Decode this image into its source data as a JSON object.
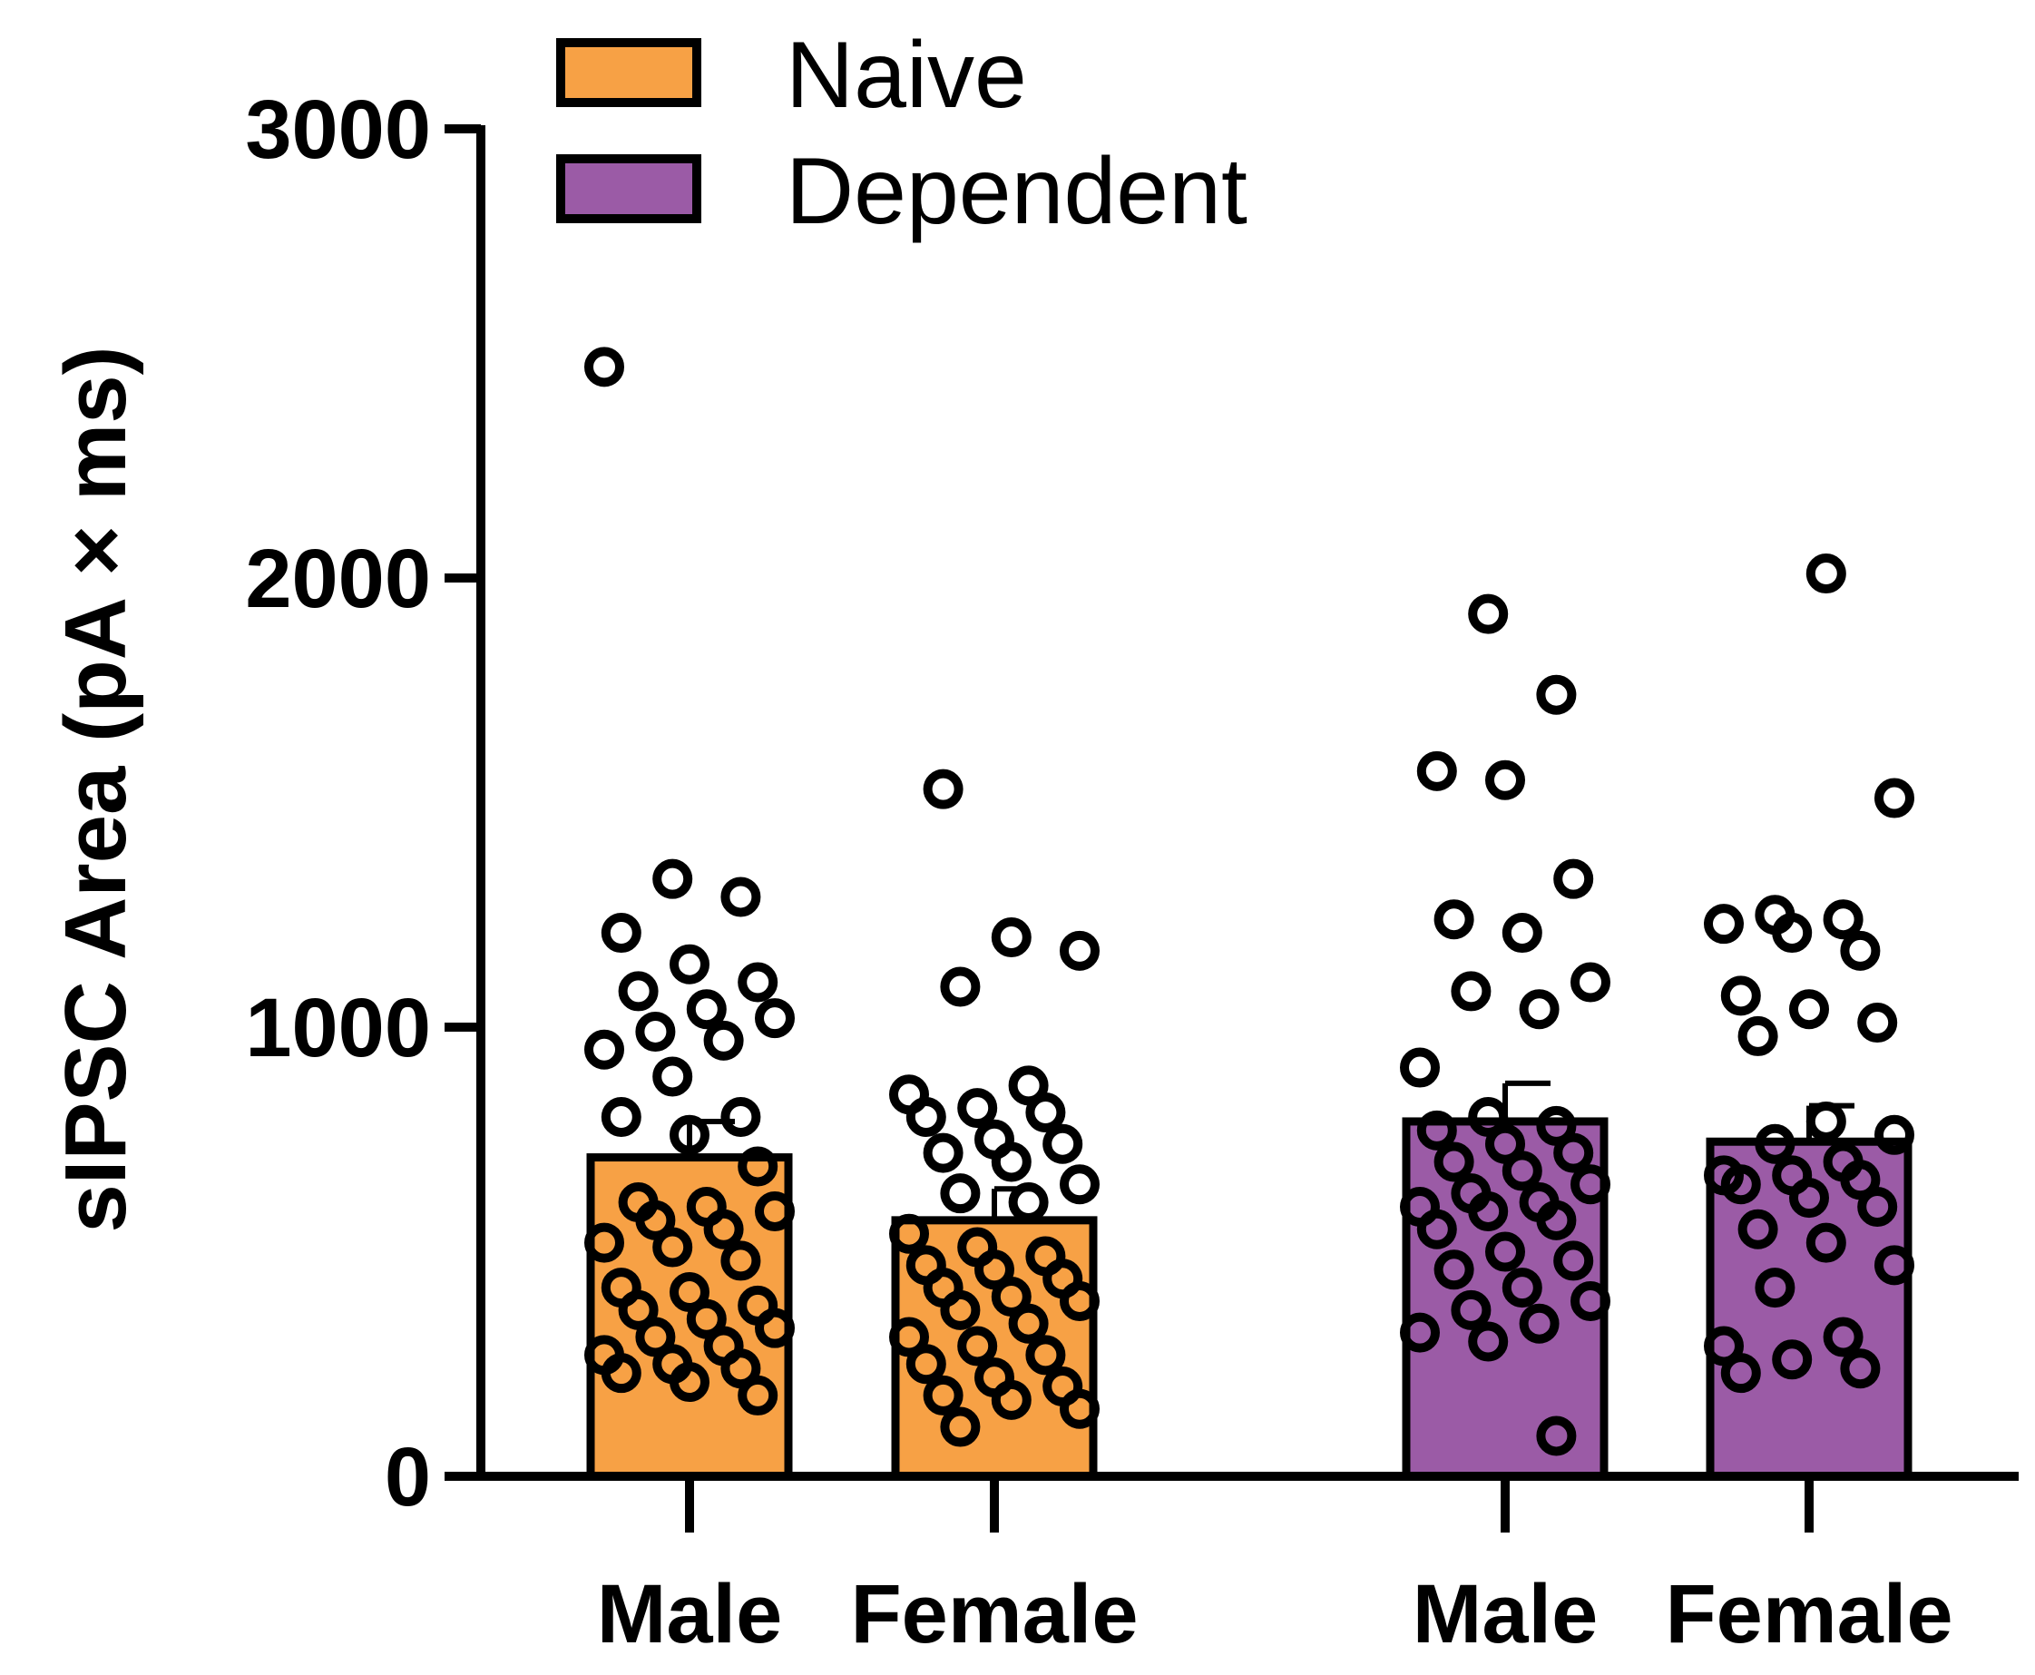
{
  "chart_data": {
    "type": "bar",
    "title": "",
    "xlabel": "",
    "ylabel": "sIPSC Area (pA × ms)",
    "ylim": [
      0,
      3000
    ],
    "yticks": [
      "0",
      "1000",
      "2000",
      "3000"
    ],
    "legend": {
      "placement": "top-left",
      "entries": [
        {
          "name": "Naive",
          "color": "#F7A145"
        },
        {
          "name": "Dependent",
          "color": "#9B5BA6"
        }
      ]
    },
    "categories": [
      "Male",
      "Female",
      "Male",
      "Female"
    ],
    "series": [
      {
        "name": "Naive",
        "color": "#F7A145",
        "groups": [
          {
            "category": "Male",
            "mean": 710,
            "sem": 80,
            "points": [
              2470,
              1330,
              1290,
              1210,
              1140,
              1100,
              1080,
              1040,
              1020,
              990,
              970,
              950,
              890,
              800,
              800,
              760,
              690,
              610,
              600,
              590,
              570,
              550,
              520,
              510,
              480,
              420,
              410,
              380,
              370,
              350,
              330,
              310,
              290,
              270,
              250,
              240,
              230,
              210,
              180
            ]
          },
          {
            "category": "Female",
            "mean": 570,
            "sem": 70,
            "points": [
              1530,
              1200,
              1170,
              1090,
              870,
              850,
              820,
              810,
              800,
              750,
              740,
              720,
              700,
              650,
              630,
              610,
              540,
              510,
              490,
              470,
              460,
              440,
              420,
              400,
              390,
              370,
              340,
              310,
              290,
              270,
              250,
              220,
              200,
              180,
              170,
              150,
              110
            ]
          }
        ]
      },
      {
        "name": "Dependent",
        "color": "#9B5BA6",
        "groups": [
          {
            "category": "Male",
            "mean": 790,
            "sem": 85,
            "points": [
              1920,
              1740,
              1570,
              1550,
              1330,
              1240,
              1210,
              1100,
              1080,
              1040,
              910,
              800,
              780,
              770,
              740,
              720,
              700,
              680,
              650,
              630,
              610,
              600,
              590,
              570,
              550,
              500,
              480,
              460,
              420,
              390,
              370,
              340,
              320,
              300,
              90
            ]
          },
          {
            "category": "Female",
            "mean": 745,
            "sem": 80,
            "points": [
              2010,
              1510,
              1250,
              1240,
              1230,
              1210,
              1170,
              1070,
              1040,
              1010,
              980,
              790,
              760,
              740,
              700,
              670,
              670,
              660,
              650,
              620,
              600,
              550,
              520,
              470,
              420,
              310,
              290,
              260,
              240,
              230
            ]
          }
        ]
      }
    ]
  }
}
